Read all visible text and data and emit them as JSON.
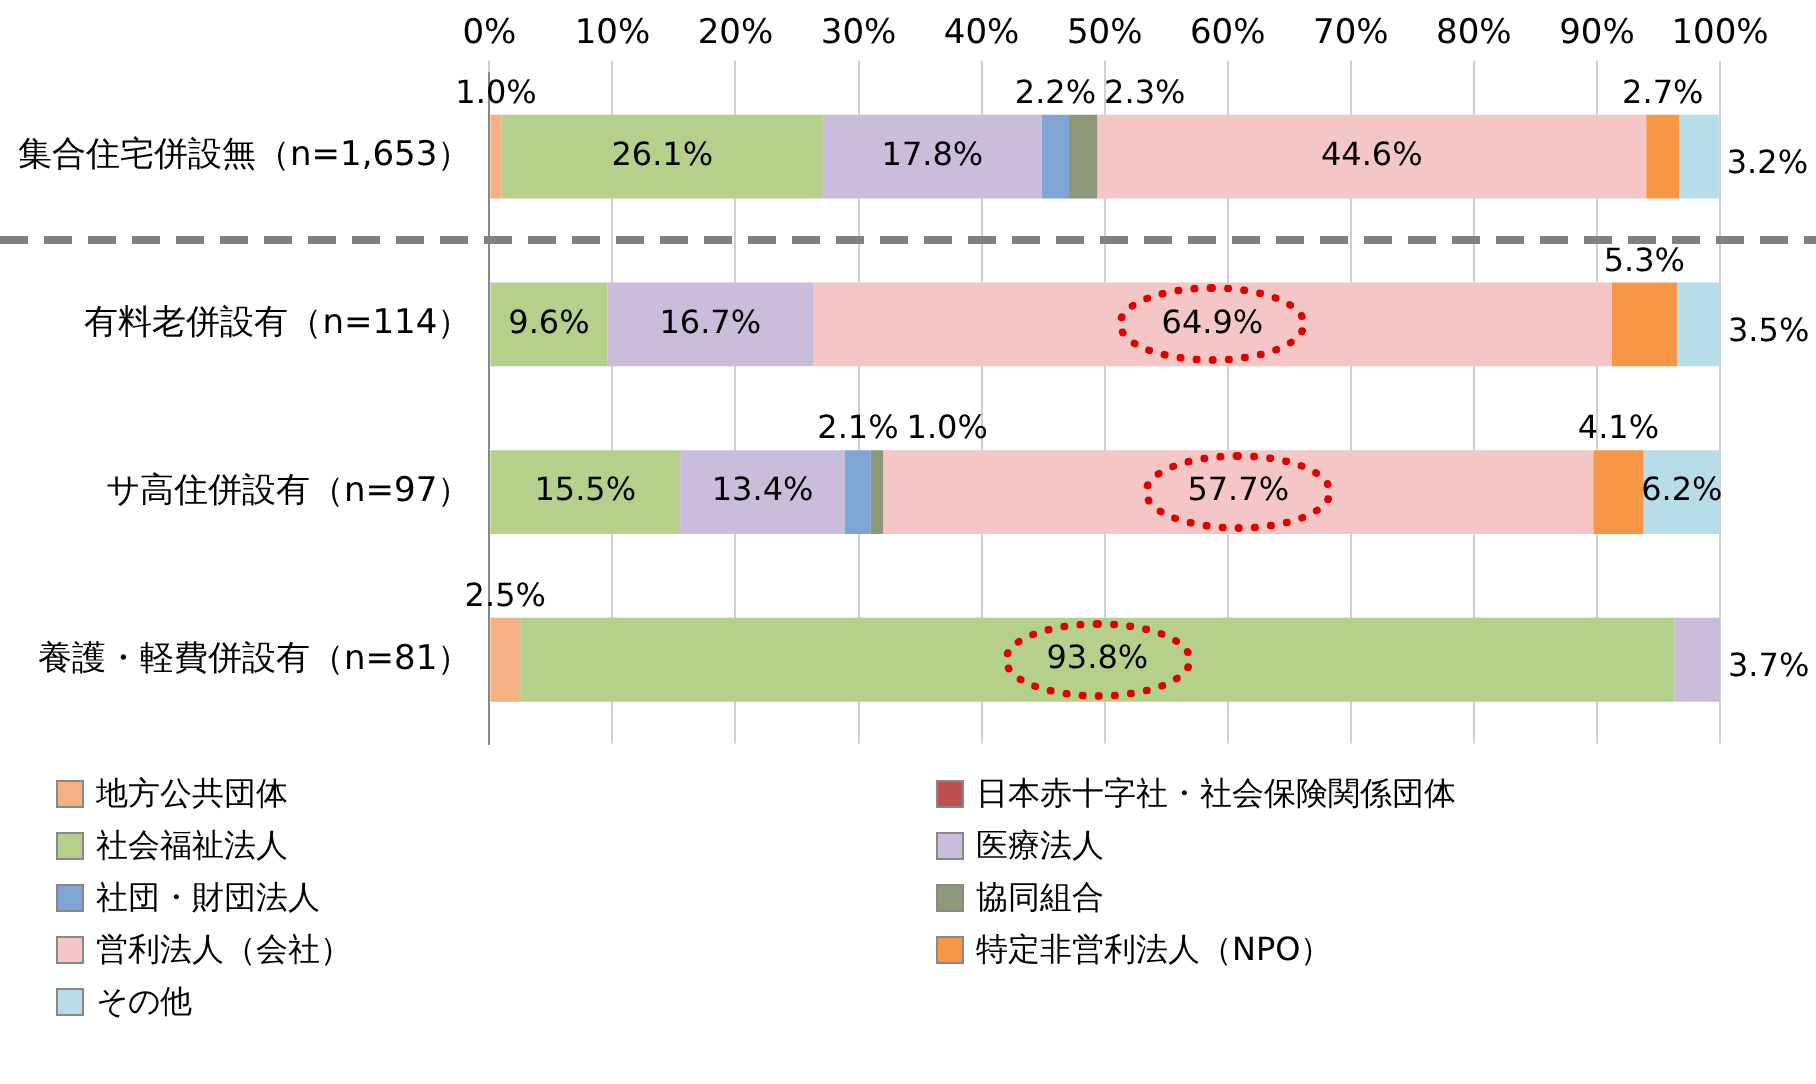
{
  "chart_data": {
    "type": "bar",
    "orientation": "horizontal",
    "stacked": true,
    "categories": [
      "集合住宅併設無（n=1,653）",
      "有料老併設有（n=114）",
      "サ高住併設有（n=97）",
      "養護・軽費併設有（n=81）"
    ],
    "series": [
      {
        "name": "地方公共団体",
        "color": "#f4b183",
        "values": [
          1.0,
          null,
          null,
          2.5
        ],
        "value_labels": [
          "1.0%",
          null,
          null,
          "2.5%"
        ]
      },
      {
        "name": "日本赤十字社・社会保険関係団体",
        "color": "#c0504d",
        "values": [
          null,
          null,
          null,
          null
        ],
        "value_labels": [
          null,
          null,
          null,
          null
        ]
      },
      {
        "name": "社会福祉法人",
        "color": "#b5d08a",
        "values": [
          26.1,
          9.6,
          15.5,
          93.8
        ],
        "value_labels": [
          "26.1%",
          "9.6%",
          "15.5%",
          "93.8%"
        ]
      },
      {
        "name": "医療法人",
        "color": "#c9bddb",
        "values": [
          17.8,
          16.7,
          13.4,
          3.7
        ],
        "value_labels": [
          "17.8%",
          "16.7%",
          "13.4%",
          "3.7%"
        ]
      },
      {
        "name": "社団・財団法人",
        "color": "#7fa5d6",
        "values": [
          2.2,
          null,
          2.1,
          null
        ],
        "value_labels": [
          "2.2%",
          null,
          "2.1%",
          null
        ]
      },
      {
        "name": "協同組合",
        "color": "#8c9878",
        "values": [
          2.3,
          null,
          1.0,
          null
        ],
        "value_labels": [
          "2.3%",
          null,
          "1.0%",
          null
        ]
      },
      {
        "name": "営利法人（会社）",
        "color": "#f5c6c6",
        "values": [
          44.6,
          64.9,
          57.7,
          null
        ],
        "value_labels": [
          "44.6%",
          "64.9%",
          "57.7%",
          null
        ]
      },
      {
        "name": "特定非営利法人（NPO）",
        "color": "#f79646",
        "values": [
          2.7,
          5.3,
          4.1,
          null
        ],
        "value_labels": [
          "2.7%",
          "5.3%",
          "4.1%",
          null
        ]
      },
      {
        "name": "その他",
        "color": "#b7dee8",
        "values": [
          3.2,
          3.5,
          6.2,
          null
        ],
        "value_labels": [
          "3.2%",
          "3.5%",
          "6.2%",
          null
        ]
      }
    ],
    "xlim": [
      0,
      100
    ],
    "xticks": [
      {
        "value": 0,
        "label": "0%"
      },
      {
        "value": 10,
        "label": "10%"
      },
      {
        "value": 20,
        "label": "20%"
      },
      {
        "value": 30,
        "label": "30%"
      },
      {
        "value": 40,
        "label": "40%"
      },
      {
        "value": 50,
        "label": "50%"
      },
      {
        "value": 60,
        "label": "60%"
      },
      {
        "value": 70,
        "label": "70%"
      },
      {
        "value": 80,
        "label": "80%"
      },
      {
        "value": 90,
        "label": "90%"
      },
      {
        "value": 100,
        "label": "100%"
      }
    ],
    "grid": "x",
    "legend": "bottom"
  }
}
